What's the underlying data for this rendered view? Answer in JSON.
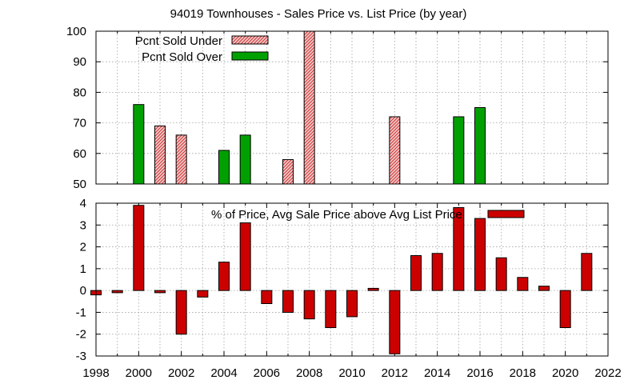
{
  "title": "94019 Townhouses - Sales Price vs. List Price (by year)",
  "colors": {
    "under_fill": "#f2c6c6",
    "under_hatch": "#cc2222",
    "over_fill": "#00a000",
    "diff_fill": "#cc0000",
    "border": "#000000",
    "grid": "#a0a0a0"
  },
  "chart_data": [
    {
      "type": "bar",
      "xlim": [
        1998,
        2022
      ],
      "ylim": [
        50,
        100
      ],
      "yticks": [
        50,
        60,
        70,
        80,
        90,
        100
      ],
      "grid": true,
      "legend_position": "top-left",
      "series": [
        {
          "name": "Pcnt Sold Under",
          "pattern": "hatched",
          "points": [
            {
              "x": 2001,
              "y": 69
            },
            {
              "x": 2002,
              "y": 66
            },
            {
              "x": 2007,
              "y": 58
            },
            {
              "x": 2008,
              "y": 100
            },
            {
              "x": 2012,
              "y": 72
            }
          ]
        },
        {
          "name": "Pcnt Sold Over",
          "pattern": "solid",
          "points": [
            {
              "x": 2000,
              "y": 76
            },
            {
              "x": 2004,
              "y": 61
            },
            {
              "x": 2005,
              "y": 66
            },
            {
              "x": 2015,
              "y": 72
            },
            {
              "x": 2016,
              "y": 75
            }
          ]
        }
      ]
    },
    {
      "type": "bar",
      "xlim": [
        1998,
        2022
      ],
      "ylim": [
        -3,
        4
      ],
      "yticks": [
        -3,
        -2,
        -1,
        0,
        1,
        2,
        3,
        4
      ],
      "xticks": [
        1998,
        2000,
        2002,
        2004,
        2006,
        2008,
        2010,
        2012,
        2014,
        2016,
        2018,
        2020,
        2022
      ],
      "grid": true,
      "legend_position": "top-center",
      "series": [
        {
          "name": "% of Price, Avg Sale Price above Avg List Price",
          "points": [
            {
              "x": 1998,
              "y": -0.2
            },
            {
              "x": 1999,
              "y": -0.1
            },
            {
              "x": 2000,
              "y": 3.9
            },
            {
              "x": 2001,
              "y": -0.1
            },
            {
              "x": 2002,
              "y": -2.0
            },
            {
              "x": 2003,
              "y": -0.3
            },
            {
              "x": 2004,
              "y": 1.3
            },
            {
              "x": 2005,
              "y": 3.1
            },
            {
              "x": 2006,
              "y": -0.6
            },
            {
              "x": 2007,
              "y": -1.0
            },
            {
              "x": 2008,
              "y": -1.3
            },
            {
              "x": 2009,
              "y": -1.7
            },
            {
              "x": 2010,
              "y": -1.2
            },
            {
              "x": 2011,
              "y": 0.1
            },
            {
              "x": 2012,
              "y": -2.9
            },
            {
              "x": 2013,
              "y": 1.6
            },
            {
              "x": 2014,
              "y": 1.7
            },
            {
              "x": 2015,
              "y": 3.8
            },
            {
              "x": 2016,
              "y": 3.3
            },
            {
              "x": 2017,
              "y": 1.5
            },
            {
              "x": 2018,
              "y": 0.6
            },
            {
              "x": 2019,
              "y": 0.2
            },
            {
              "x": 2020,
              "y": -1.7
            },
            {
              "x": 2021,
              "y": 1.7
            }
          ]
        }
      ]
    }
  ]
}
